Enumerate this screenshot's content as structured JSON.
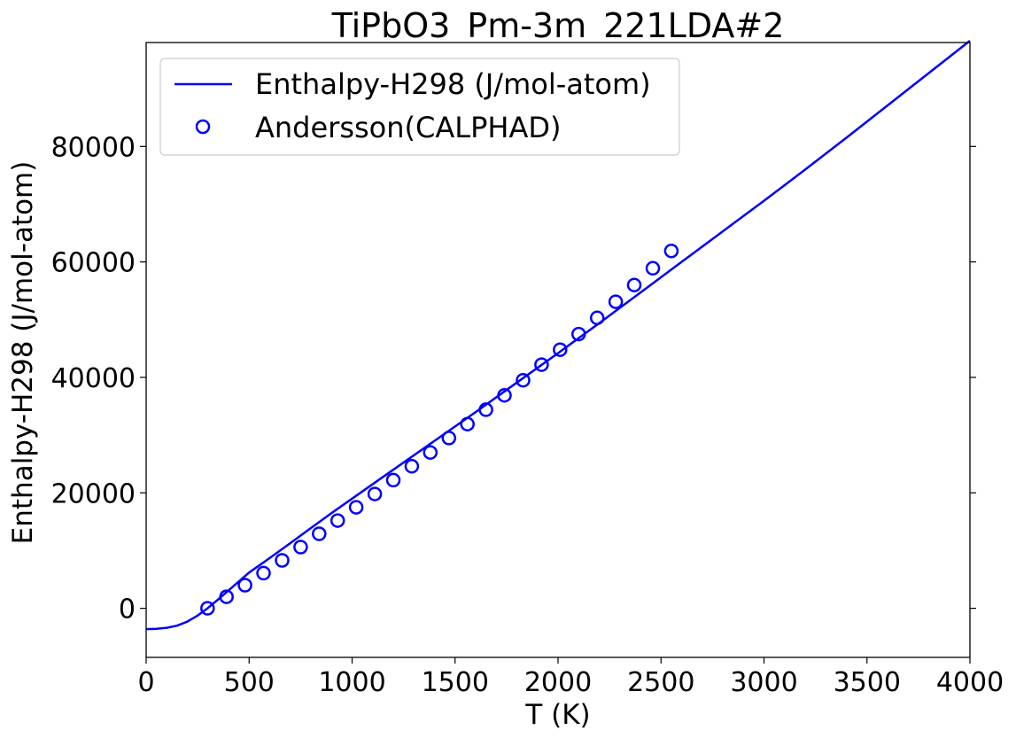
{
  "chart_data": {
    "type": "line",
    "title": "TiPbO3_Pm-3m_221LDA#2",
    "xlabel": "T (K)",
    "ylabel": "Enthalpy-H298 (J/mol-atom)",
    "xlim": [
      0,
      4000
    ],
    "ylim": [
      -8500,
      98000
    ],
    "xticks": [
      0,
      500,
      1000,
      1500,
      2000,
      2500,
      3000,
      3500,
      4000
    ],
    "yticks": [
      0,
      20000,
      40000,
      60000,
      80000
    ],
    "grid": false,
    "legend_position": "top-left",
    "colors": {
      "series": "#0000ff",
      "axes": "#000000",
      "legend_border": "#cccccc"
    },
    "series": [
      {
        "name": "Enthalpy-H298 (J/mol-atom)",
        "kind": "line",
        "x": [
          0,
          50,
          100,
          150,
          200,
          250,
          298,
          350,
          400,
          500,
          600,
          700,
          800,
          900,
          1000,
          1200,
          1400,
          1600,
          1800,
          2000,
          2200,
          2400,
          2600,
          2800,
          3000,
          3200,
          3400,
          3600,
          3800,
          4000
        ],
        "y": [
          -3600,
          -3560,
          -3380,
          -3000,
          -2300,
          -1250,
          0,
          1550,
          3100,
          6200,
          8700,
          11300,
          13900,
          16500,
          19000,
          24000,
          29000,
          34000,
          39100,
          44200,
          49400,
          54700,
          60000,
          65300,
          70600,
          76000,
          81500,
          87100,
          92700,
          98300
        ]
      },
      {
        "name": "Andersson(CALPHAD)",
        "kind": "scatter",
        "marker": "open-circle",
        "x": [
          298,
          390,
          480,
          570,
          660,
          750,
          840,
          930,
          1020,
          1110,
          1200,
          1290,
          1380,
          1470,
          1560,
          1650,
          1740,
          1830,
          1920,
          2010,
          2100,
          2190,
          2280,
          2370,
          2460,
          2550
        ],
        "y": [
          0,
          2000,
          4000,
          6100,
          8300,
          10600,
          12900,
          15200,
          17500,
          19800,
          22200,
          24600,
          27000,
          29500,
          31900,
          34400,
          36900,
          39500,
          42200,
          44800,
          47500,
          50300,
          53100,
          56000,
          58900,
          61900
        ]
      }
    ]
  }
}
